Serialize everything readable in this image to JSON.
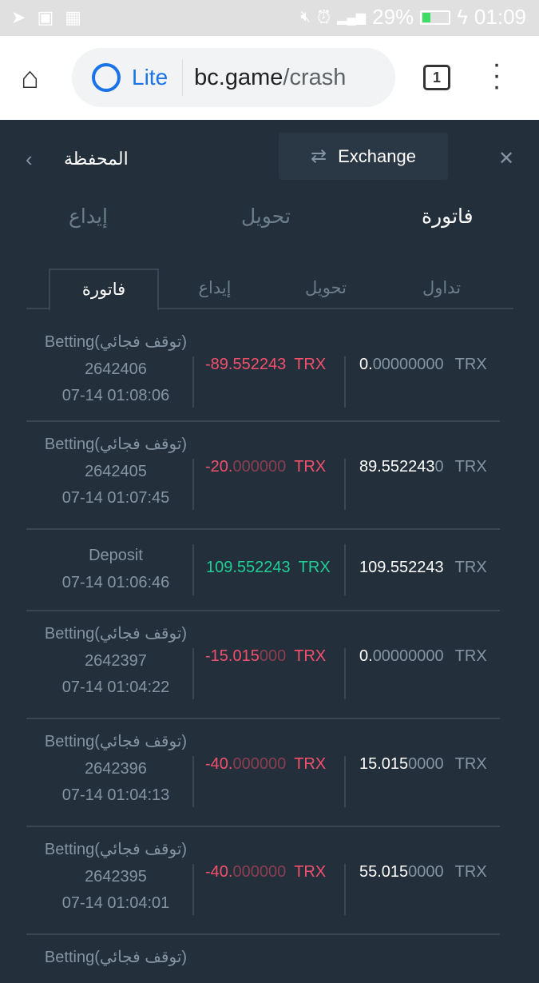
{
  "status_bar": {
    "battery": "29%",
    "time": "01:09",
    "battery_level": 0.29
  },
  "browser": {
    "mode": "Lite",
    "host": "bc.game",
    "path": "/crash",
    "tab_count": "1"
  },
  "header": {
    "title": "المحفظة",
    "exchange_label": "Exchange"
  },
  "main_tabs": [
    {
      "label": "فاتورة",
      "active": true
    },
    {
      "label": "تحويل"
    },
    {
      "label": "إيداع"
    }
  ],
  "sub_tabs": [
    {
      "label": "تداول"
    },
    {
      "label": "تحويل"
    },
    {
      "label": "إيداع"
    },
    {
      "label": "فاتورة",
      "active": true
    }
  ],
  "colors": {
    "background": "#232f3b",
    "negative": "#f4506c",
    "positive": "#1fcf95"
  },
  "rows": [
    {
      "type": "Betting(توقف فجائي)",
      "id": "2642406",
      "time": "07-14 01:08:06",
      "amount_main": "-89.552243",
      "amount_dim": "",
      "sign": "neg",
      "currency": "TRX",
      "balance_main": "0.",
      "balance_dim": "00000000"
    },
    {
      "type": "Betting(توقف فجائي)",
      "id": "2642405",
      "time": "07-14 01:07:45",
      "amount_main": "-20.",
      "amount_dim": "000000",
      "sign": "neg",
      "currency": "TRX",
      "balance_main": "89.552243",
      "balance_dim": "0"
    },
    {
      "type": "Deposit",
      "id": "",
      "time": "07-14 01:06:46",
      "amount_main": "109.552243",
      "amount_dim": "",
      "sign": "pos",
      "currency": "TRX",
      "balance_main": "109.552243",
      "balance_dim": ""
    },
    {
      "type": "Betting(توقف فجائي)",
      "id": "2642397",
      "time": "07-14 01:04:22",
      "amount_main": "-15.015",
      "amount_dim": "000",
      "sign": "neg",
      "currency": "TRX",
      "balance_main": "0.",
      "balance_dim": "00000000"
    },
    {
      "type": "Betting(توقف فجائي)",
      "id": "2642396",
      "time": "07-14 01:04:13",
      "amount_main": "-40.",
      "amount_dim": "000000",
      "sign": "neg",
      "currency": "TRX",
      "balance_main": "15.015",
      "balance_dim": "0000"
    },
    {
      "type": "Betting(توقف فجائي)",
      "id": "2642395",
      "time": "07-14 01:04:01",
      "amount_main": "-40.",
      "amount_dim": "000000",
      "sign": "neg",
      "currency": "TRX",
      "balance_main": "55.015",
      "balance_dim": "0000"
    },
    {
      "type": "Betting(توقف فجائي)",
      "id": "",
      "time": "",
      "amount_main": "",
      "amount_dim": "",
      "sign": "neg",
      "currency": "",
      "balance_main": "",
      "balance_dim": ""
    }
  ]
}
